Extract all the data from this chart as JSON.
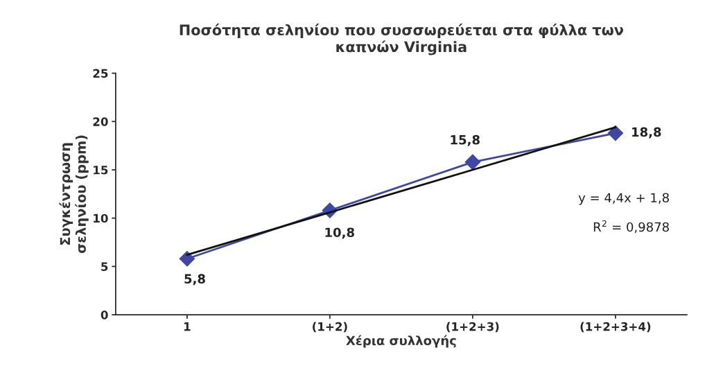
{
  "chart_data": {
    "type": "line",
    "title": "Ποσότητα σεληνίου που συσσωρεύεται στα φύλλα των\nκαπνών Virginia",
    "xlabel": "Χέρια συλλογής",
    "ylabel": "Συγκέντρωση\nσεληνίου (ppm)",
    "categories": [
      "1",
      "(1+2)",
      "(1+2+3)",
      "(1+2+3+4)"
    ],
    "series": [
      {
        "color": "#3f48a0",
        "values": [
          5.8,
          10.8,
          15.8,
          18.8
        ],
        "marker": "diamond",
        "value_labels": [
          "5,8",
          "10,8",
          "15,8",
          "18,8"
        ]
      },
      {
        "color": "#111111",
        "values": [
          6.2,
          10.6,
          15.0,
          19.4
        ],
        "marker": "none"
      }
    ],
    "ylim": [
      0,
      25
    ],
    "yticks": [
      0,
      5,
      10,
      15,
      20,
      25
    ],
    "grid": false,
    "legend": false,
    "annotations": [
      "y = 4,4x + 1,8",
      "R$^{2}$ = 0,9878"
    ]
  }
}
